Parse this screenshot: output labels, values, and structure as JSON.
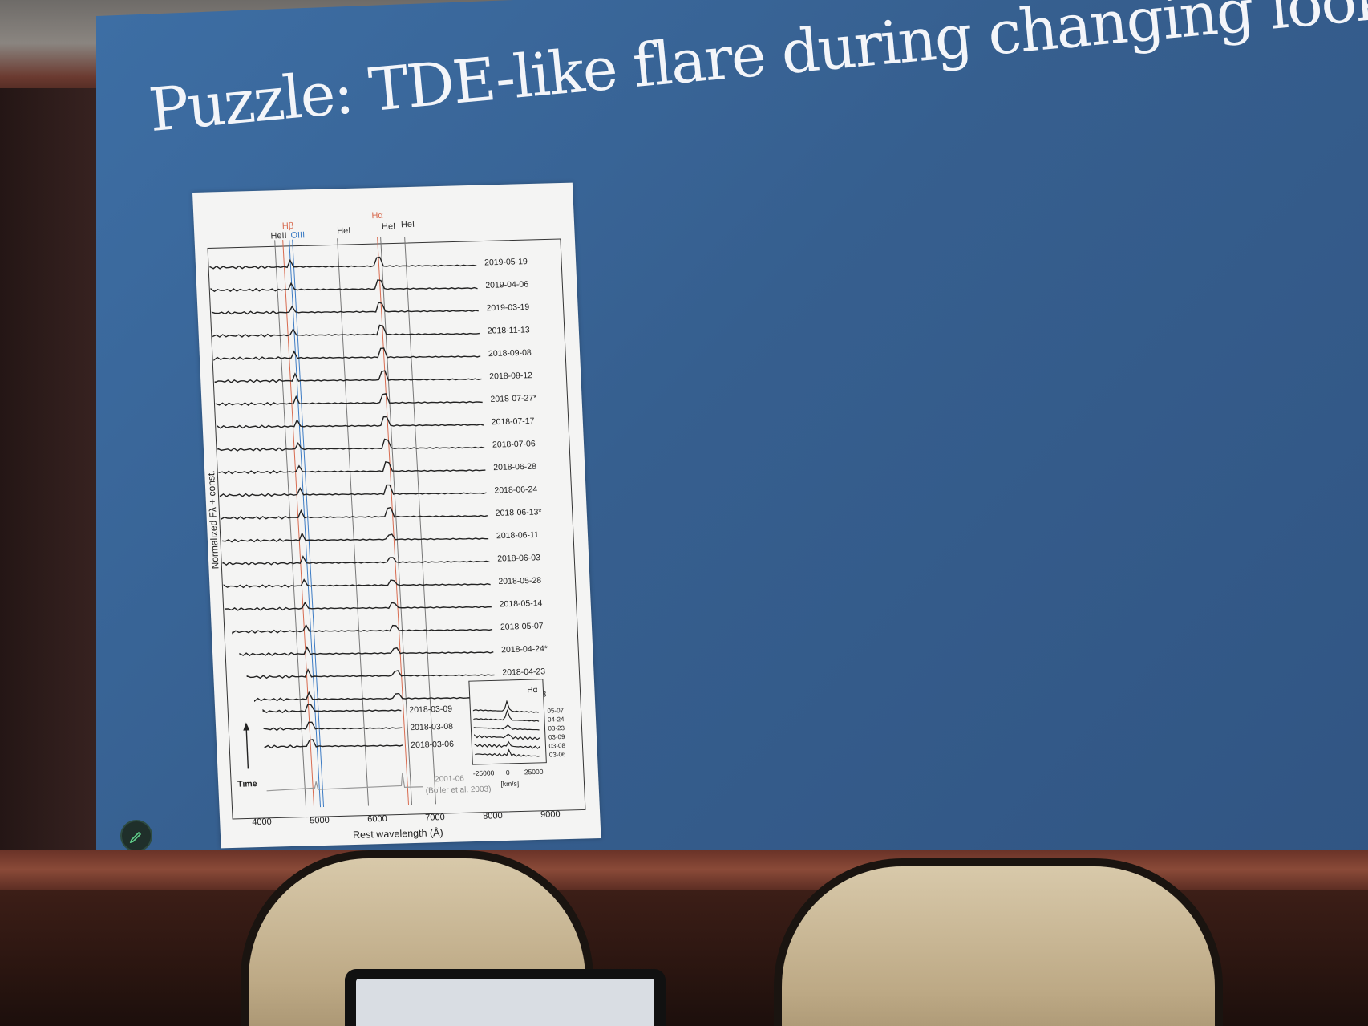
{
  "slide": {
    "title": "Puzzle: TDE-like flare during changing look AGN"
  },
  "figure": {
    "line_labels": [
      "HeII",
      "Hβ",
      "OIII",
      "HeI",
      "Hα",
      "HeI",
      "HeI"
    ],
    "dates": [
      "2019-05-19",
      "2019-04-06",
      "2019-03-19",
      "2018-11-13",
      "2018-09-08",
      "2018-08-12",
      "2018-07-27*",
      "2018-07-17",
      "2018-07-06",
      "2018-06-28",
      "2018-06-24",
      "2018-06-13*",
      "2018-06-11",
      "2018-06-03",
      "2018-05-28",
      "2018-05-14",
      "2018-05-07",
      "2018-04-24*",
      "2018-04-23",
      "2018-03-23",
      "2018-03-09",
      "2018-03-08",
      "2018-03-06"
    ],
    "reference_label": "2001-06",
    "reference_citation": "(Boller et al. 2003)",
    "ylabel": "Normalized Fλ + const.",
    "xlabel": "Rest wavelength (Å)",
    "xticks": [
      "4000",
      "5000",
      "6000",
      "7000",
      "8000",
      "9000"
    ],
    "time_label": "Time",
    "inset": {
      "title": "Hα",
      "dates": [
        "05-07",
        "04-24",
        "03-23",
        "03-09",
        "03-08",
        "03-06"
      ],
      "xticks": [
        "-25000",
        "0",
        "25000"
      ],
      "xunit": "[km/s]"
    }
  }
}
